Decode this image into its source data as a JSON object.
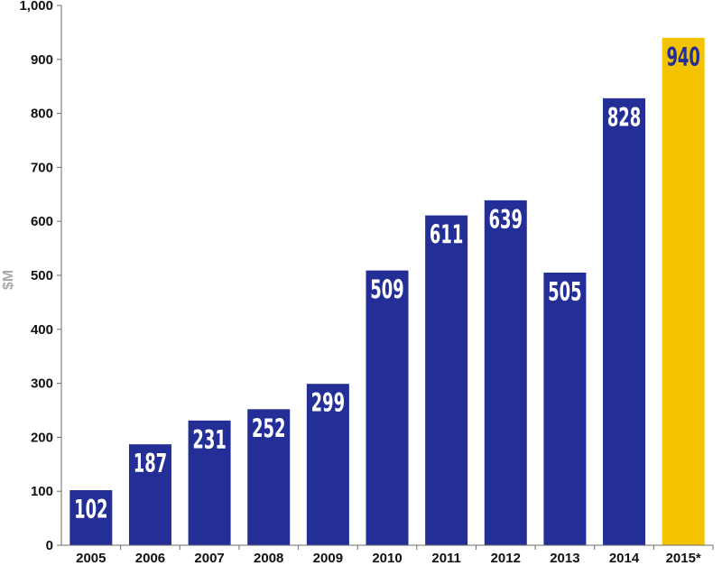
{
  "chart_data": {
    "type": "bar",
    "categories": [
      "2005",
      "2006",
      "2007",
      "2008",
      "2009",
      "2010",
      "2011",
      "2012",
      "2013",
      "2014",
      "2015*"
    ],
    "values": [
      102,
      187,
      231,
      252,
      299,
      509,
      611,
      639,
      505,
      828,
      940
    ],
    "value_labels": [
      "102",
      "187",
      "231",
      "252",
      "299",
      "509",
      "611",
      "639",
      "505",
      "828",
      "940"
    ],
    "ylabel": "$M",
    "ylim": [
      0,
      1000
    ],
    "y_ticks": [
      0,
      100,
      200,
      300,
      400,
      500,
      600,
      700,
      800,
      900,
      1000
    ],
    "y_tick_labels": [
      "0",
      "100",
      "200",
      "300",
      "400",
      "500",
      "600",
      "700",
      "800",
      "900",
      "1,000"
    ],
    "grid": false,
    "colors": {
      "bar": "#232f97",
      "highlight_bar": "#f4c300",
      "label_on_bar": "#ffffff",
      "label_on_highlight": "#232f97",
      "axis": "#6b6b6b"
    },
    "highlight_category": "2015*"
  }
}
